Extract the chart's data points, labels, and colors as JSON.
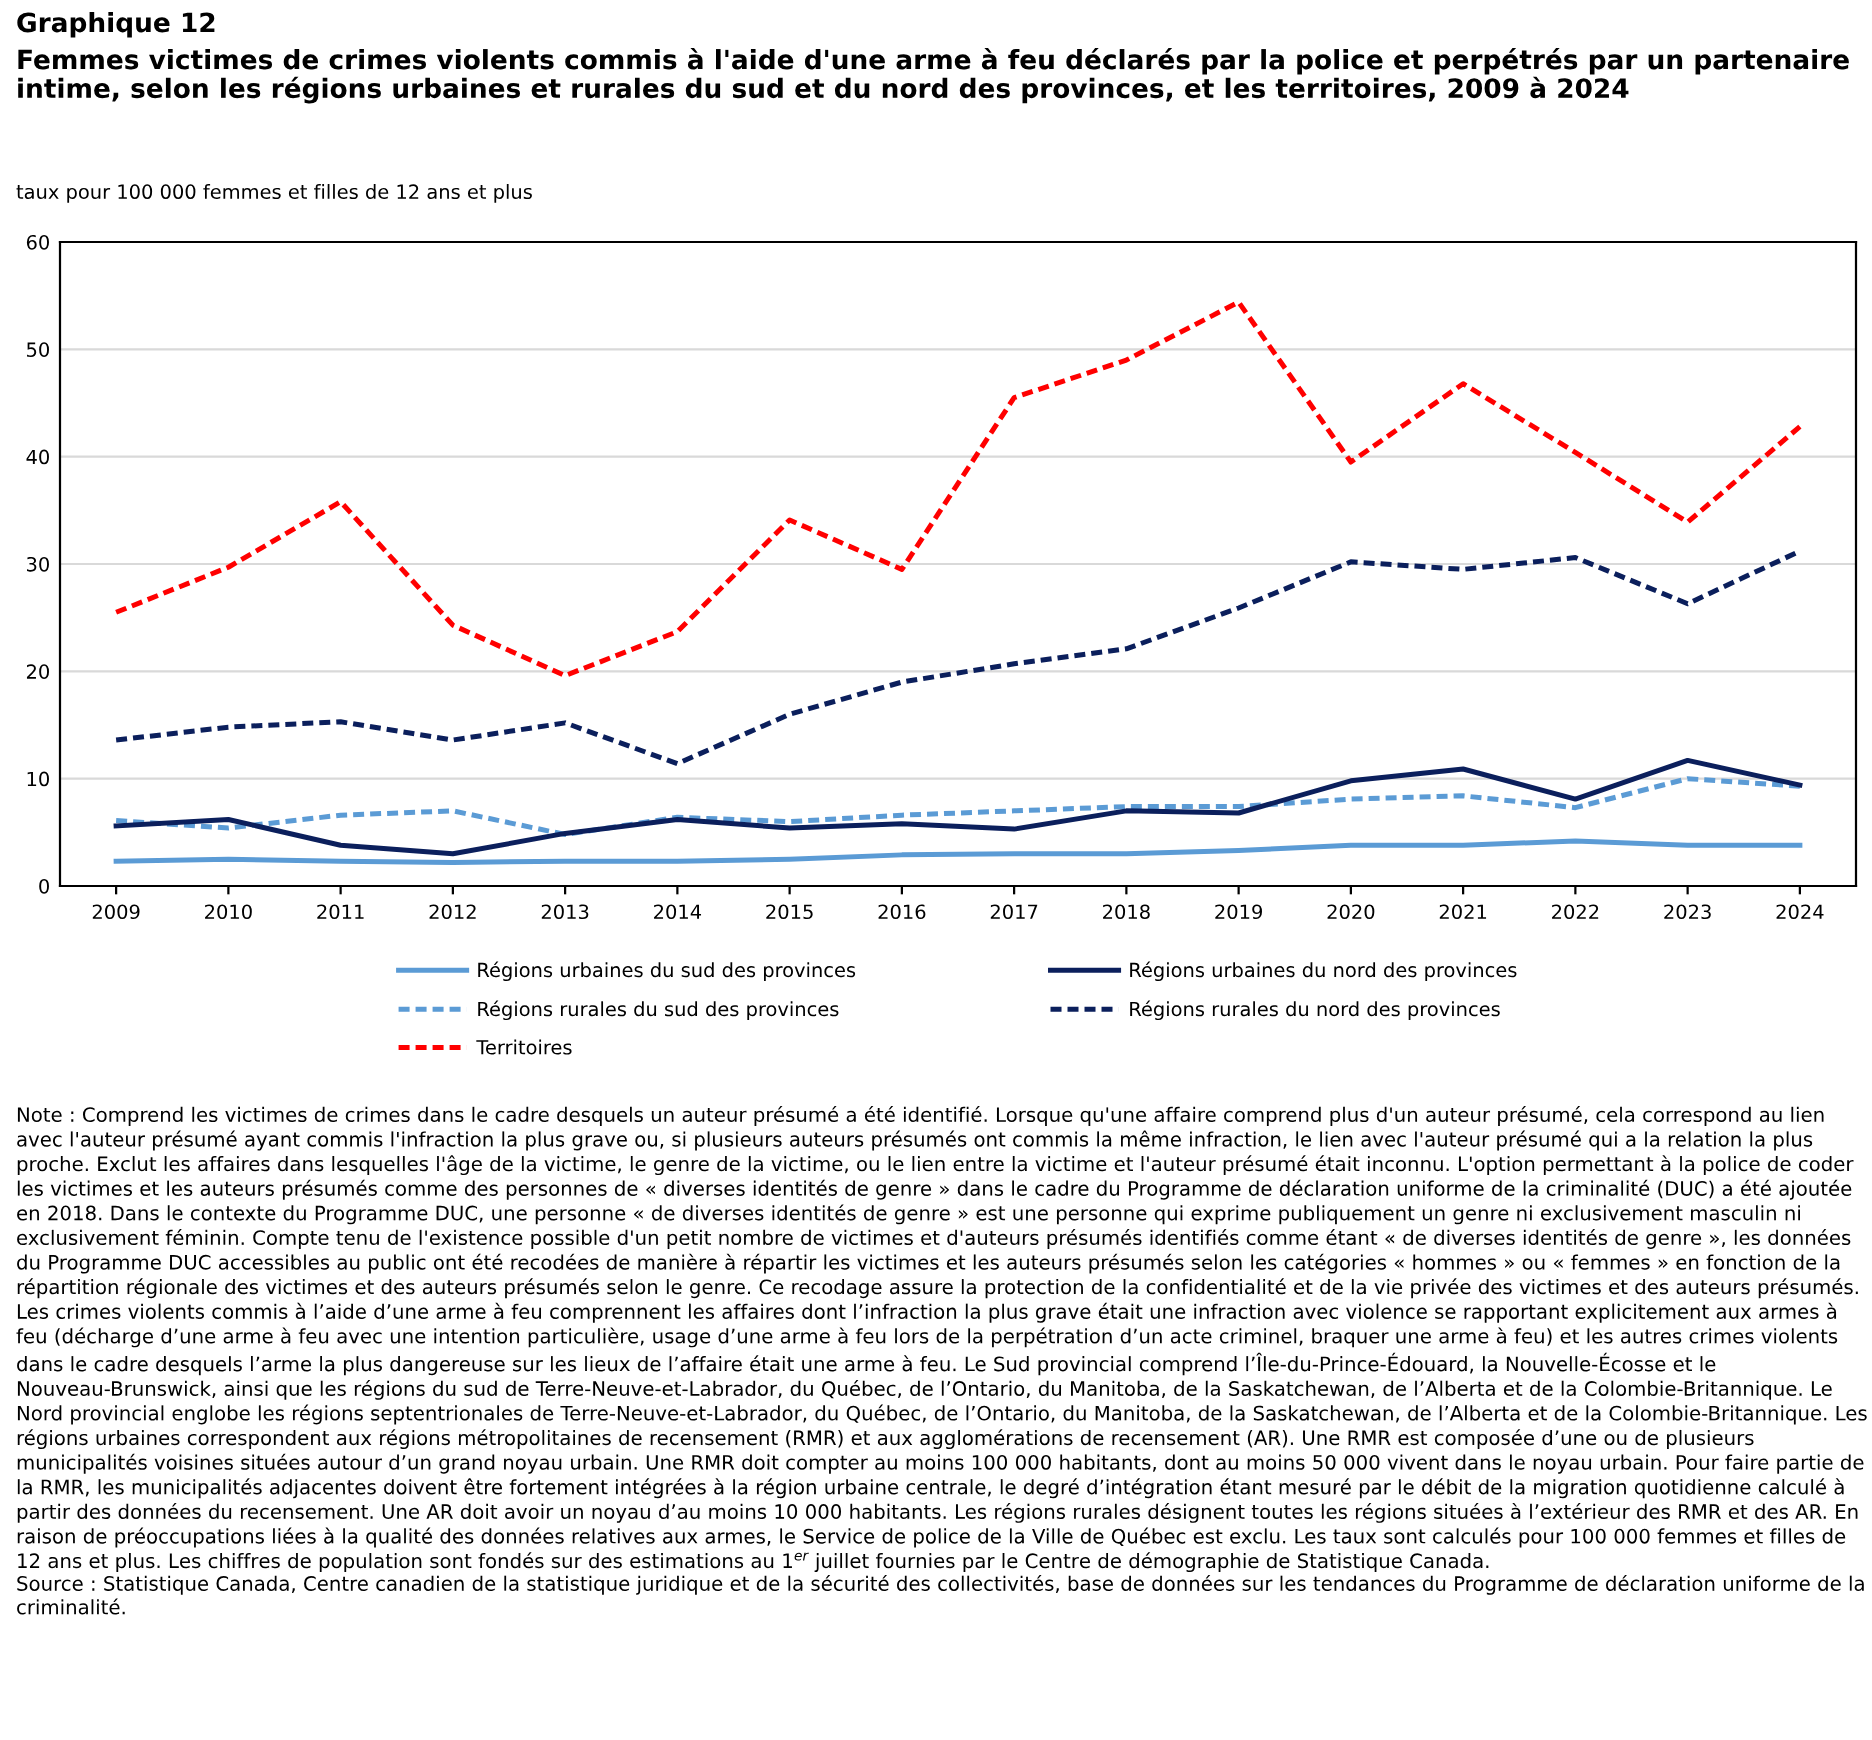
{
  "chart_data": {
    "type": "line",
    "title": "Graphique 12",
    "subtitle": "Femmes victimes de crimes violents commis à l'aide d'une arme à feu déclarés par la police et perpétrés par un partenaire intime, selon les régions urbaines et rurales du sud et du nord des provinces, et les territoires, 2009 à 2024",
    "ylabel": "taux pour 100 000 femmes et filles de 12 ans et plus",
    "x": [
      2009,
      2010,
      2011,
      2012,
      2013,
      2014,
      2015,
      2016,
      2017,
      2018,
      2019,
      2020,
      2021,
      2022,
      2023,
      2024
    ],
    "xlim": [
      2008.5,
      2024.5
    ],
    "xticks": [
      2009,
      2010,
      2011,
      2012,
      2013,
      2014,
      2015,
      2016,
      2017,
      2018,
      2019,
      2020,
      2021,
      2022,
      2023,
      2024
    ],
    "ylim": [
      0,
      60
    ],
    "yticks": [
      0,
      10,
      20,
      30,
      40,
      50,
      60
    ],
    "grid": "y",
    "legend": "bottom",
    "marker": "none",
    "series": [
      {
        "name": "Régions urbaines du sud des provinces",
        "color": "#5b9bd5",
        "line_style": "solid",
        "values": [
          2.3,
          2.5,
          2.3,
          2.2,
          2.3,
          2.3,
          2.5,
          2.9,
          3.0,
          3.0,
          3.3,
          3.8,
          3.8,
          4.2,
          3.8,
          3.8
        ]
      },
      {
        "name": "Régions rurales du sud des provinces",
        "color": "#5b9bd5",
        "line_style": "dashed",
        "values": [
          6.1,
          5.4,
          6.6,
          7.0,
          4.8,
          6.4,
          6.0,
          6.6,
          7.0,
          7.4,
          7.4,
          8.1,
          8.4,
          7.3,
          10.0,
          9.3
        ]
      },
      {
        "name": "Territoires",
        "color": "#ff0000",
        "line_style": "dashed",
        "values": [
          25.5,
          29.7,
          35.8,
          24.3,
          19.6,
          23.7,
          34.1,
          29.5,
          45.5,
          49.0,
          54.4,
          39.5,
          46.8,
          40.4,
          33.9,
          42.8
        ]
      },
      {
        "name": "Régions urbaines du nord des provinces",
        "color": "#0b1f5c",
        "line_style": "solid",
        "values": [
          5.6,
          6.2,
          3.8,
          3.0,
          4.9,
          6.2,
          5.4,
          5.8,
          5.3,
          7.0,
          6.8,
          9.8,
          10.9,
          8.1,
          11.7,
          9.4
        ]
      },
      {
        "name": "Régions rurales du nord des provinces",
        "color": "#0b1f5c",
        "line_style": "dashed",
        "values": [
          13.6,
          14.8,
          15.3,
          13.6,
          15.2,
          11.4,
          16.0,
          19.0,
          20.7,
          22.1,
          25.9,
          30.2,
          29.5,
          30.6,
          26.3,
          31.2
        ]
      }
    ],
    "annotations": [
      "Note : Comprend les victimes de crimes dans le cadre desquels un auteur présumé a été identifié. Lorsque qu'une affaire comprend plus d'un auteur présumé, cela correspond au lien avec l'auteur présumé ayant commis l'infraction la plus grave ou, si plusieurs auteurs présumés ont commis la même infraction, le lien avec l'auteur présumé qui a la relation la plus proche. Exclut les affaires dans lesquelles l'âge de la victime, le genre de la victime, ou le lien entre la victime et l'auteur présumé était inconnu. L'option permettant à la police de coder les victimes et les auteurs présumés comme des personnes de « diverses identités de genre » dans le cadre du Programme de déclaration uniforme de la criminalité (DUC) a été ajoutée en 2018. Dans le contexte du Programme DUC, une personne « de diverses identités de genre » est une personne qui exprime publiquement un genre ni exclusivement masculin ni exclusivement féminin. Compte tenu de l'existence possible d'un petit nombre de victimes et d'auteurs présumés identifiés comme étant « de diverses identités de genre », les données du Programme DUC accessibles au public ont été recodées de manière à répartir les victimes et les auteurs présumés selon les catégories « hommes » ou « femmes » en fonction de la répartition régionale des victimes et des auteurs présumés selon le genre. Ce recodage assure la protection de la confidentialité et de la vie privée des victimes et des auteurs présumés. Les crimes violents commis à l’aide d’une arme à feu comprennent les affaires dont l’infraction la plus grave était une infraction avec violence se rapportant explicitement aux armes à feu (décharge d’une arme à feu avec une intention particulière, usage d’une arme à feu lors de la perpétration d’un acte criminel, braquer une arme à feu) et les autres crimes violents dans le cadre desquels l’arme la plus dangereuse sur les lieux de l’affaire était une arme à feu. Le Sud provincial comprend l’Île-du-Prince-Édouard, la Nouvelle-Écosse et le Nouveau-Brunswick, ainsi que les régions du sud de Terre-Neuve-et-Labrador, du Québec, de l’Ontario, du Manitoba, de la Saskatchewan, de l’Alberta et de la Colombie-Britannique. Le Nord provincial englobe les régions septentrionales de Terre-Neuve-et-Labrador, du Québec, de l’Ontario, du Manitoba, de la Saskatchewan, de l’Alberta et de la Colombie-Britannique. Les régions urbaines correspondent aux régions métropolitaines de recensement (RMR) et aux agglomérations de recensement (AR). Une RMR est composée d’une ou de plusieurs municipalités voisines situées autour d’un grand noyau urbain. Une RMR doit compter au moins 100 000 habitants, dont au moins 50 000 vivent dans le noyau urbain. Pour faire partie de la RMR, les municipalités adjacentes doivent être fortement intégrées à la région urbaine centrale, le degré d’intégration étant mesuré par le débit de la migration quotidienne calculé à partir des données du recensement. Une AR doit avoir un noyau d’au moins 10 000 habitants. Les régions rurales désignent toutes les régions situées à l’extérieur des RMR et des AR. En raison de préoccupations liées à la qualité des données relatives aux armes, le Service de police de la Ville de Québec est exclu. Les taux sont calculés pour 100 000 femmes et filles de 12 ans et plus. Les chiffres de population sont fondés sur des estimations au 1$^{er}$ juillet fournies par le Centre de démographie de Statistique Canada.",
      "Source : Statistique Canada, Centre canadien de la statistique juridique et de la sécurité des collectivités, base de données sur les tendances du Programme de déclaration uniforme de la criminalité."
    ]
  }
}
